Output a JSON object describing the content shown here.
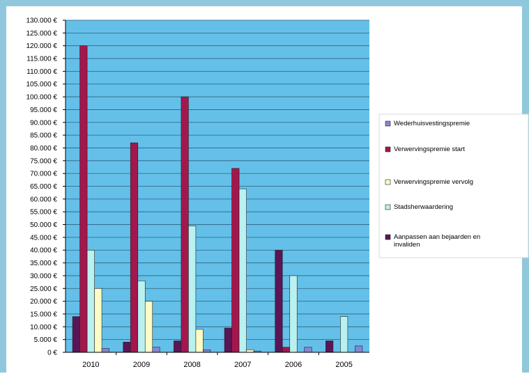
{
  "chart_data": {
    "type": "bar",
    "title": "",
    "xlabel": "",
    "ylabel": "",
    "categories": [
      "2010",
      "2009",
      "2008",
      "2007",
      "2006",
      "2005"
    ],
    "y_ticks": [
      "0 €",
      "5.000 €",
      "10.000 €",
      "15.000 €",
      "20.000 €",
      "25.000 €",
      "30.000 €",
      "35.000 €",
      "40.000 €",
      "45.000 €",
      "50.000 €",
      "55.000 €",
      "60.000 €",
      "65.000 €",
      "70.000 €",
      "75.000 €",
      "80.000 €",
      "85.000 €",
      "90.000 €",
      "95.000 €",
      "100.000 €",
      "105.000 €",
      "110.000 €",
      "115.000 €",
      "120.000 €",
      "125.000 €",
      "130.000 €"
    ],
    "ylim": [
      0,
      130000
    ],
    "grid": true,
    "legend_position": "right",
    "series_order_in_group": [
      "Aanpassen aan bejaarden en invaliden",
      "Verwervingspremie start",
      "Stadsherwaardering",
      "Verwervingspremie vervolg",
      "Wederhuisvestingspremie"
    ],
    "series": [
      {
        "name": "Wederhuisvestingspremie",
        "color": "#8585d6",
        "values": [
          1500,
          2000,
          1000,
          500,
          2000,
          2500
        ]
      },
      {
        "name": "Verwervingspremie start",
        "color": "#a3174d",
        "values": [
          120000,
          82000,
          100000,
          72000,
          2000,
          0
        ]
      },
      {
        "name": "Verwervingspremie vervolg",
        "color": "#fffbc4",
        "values": [
          25000,
          20000,
          9000,
          1000,
          0,
          0
        ]
      },
      {
        "name": "Stadsherwaardering",
        "color": "#b9f1f1",
        "values": [
          40000,
          28000,
          49500,
          64000,
          30000,
          14000
        ]
      },
      {
        "name": "Aanpassen aan bejaarden en invaliden",
        "color": "#5a1557",
        "values": [
          14000,
          4000,
          4500,
          9500,
          40000,
          4500
        ]
      }
    ],
    "colors": {
      "page_border": "#8fc7dd",
      "plot_bg": "#64c0e8",
      "gridline": "#2c6080"
    }
  }
}
